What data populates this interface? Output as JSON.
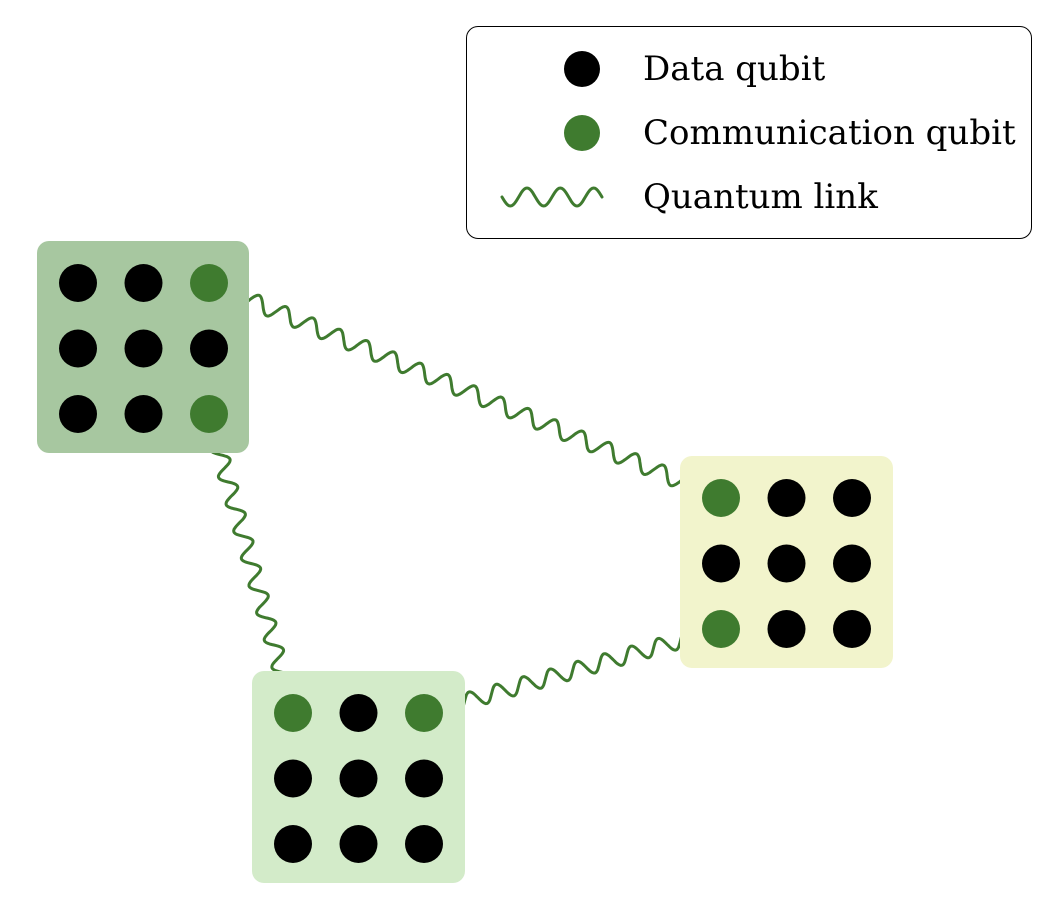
{
  "colors": {
    "data_qubit": "#000000",
    "communication_qubit": "#3f7b2f",
    "quantum_link": "#3f7b2f",
    "node_fills": [
      "#a7c7a0",
      "#f2f4cc",
      "#d3ebc9"
    ]
  },
  "legend": {
    "items": [
      {
        "label": "Data qubit",
        "glyph": "black-dot-icon"
      },
      {
        "label": "Communication qubit",
        "glyph": "green-dot-icon"
      },
      {
        "label": "Quantum link",
        "glyph": "wavy-line-icon"
      }
    ]
  },
  "nodes": [
    {
      "name": "node-a",
      "grid": [
        [
          "data",
          "data",
          "comm"
        ],
        [
          "data",
          "data",
          "data"
        ],
        [
          "data",
          "data",
          "comm"
        ]
      ]
    },
    {
      "name": "node-b",
      "grid": [
        [
          "comm",
          "data",
          "data"
        ],
        [
          "data",
          "data",
          "data"
        ],
        [
          "comm",
          "data",
          "data"
        ]
      ]
    },
    {
      "name": "node-c",
      "grid": [
        [
          "comm",
          "data",
          "comm"
        ],
        [
          "data",
          "data",
          "data"
        ],
        [
          "data",
          "data",
          "data"
        ]
      ]
    }
  ],
  "links": [
    {
      "from": [
        "node-a",
        0,
        2
      ],
      "to": [
        "node-b",
        0,
        0
      ]
    },
    {
      "from": [
        "node-a",
        2,
        2
      ],
      "to": [
        "node-c",
        0,
        0
      ]
    },
    {
      "from": [
        "node-c",
        0,
        2
      ],
      "to": [
        "node-b",
        2,
        0
      ]
    }
  ]
}
